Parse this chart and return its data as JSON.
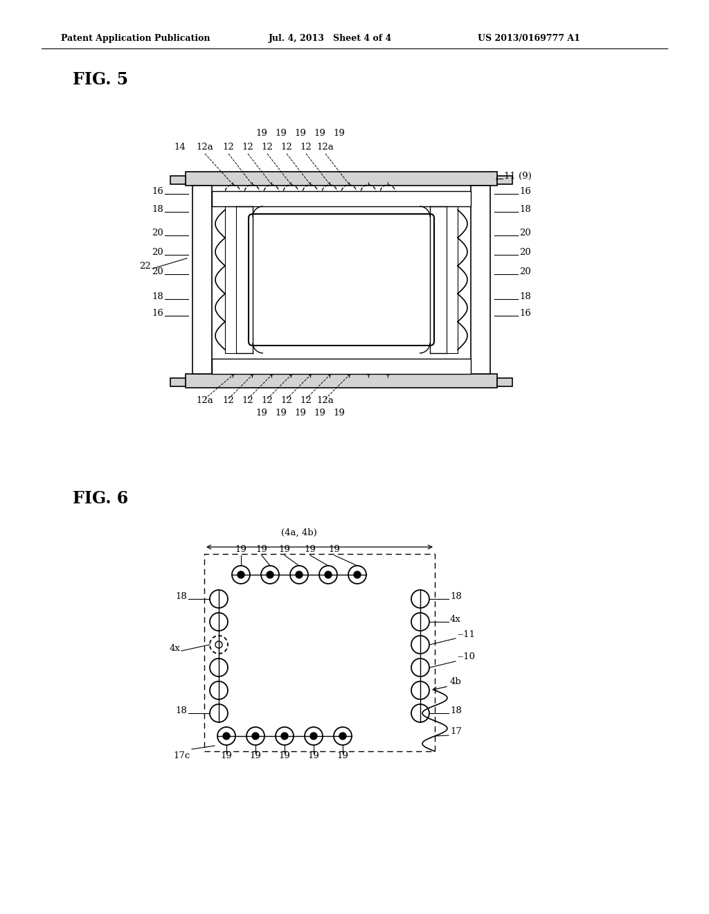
{
  "background_color": "#ffffff",
  "header_left": "Patent Application Publication",
  "header_mid": "Jul. 4, 2013   Sheet 4 of 4",
  "header_right": "US 2013/0169777 A1",
  "fig5_label": "FIG. 5",
  "fig6_label": "FIG. 6"
}
